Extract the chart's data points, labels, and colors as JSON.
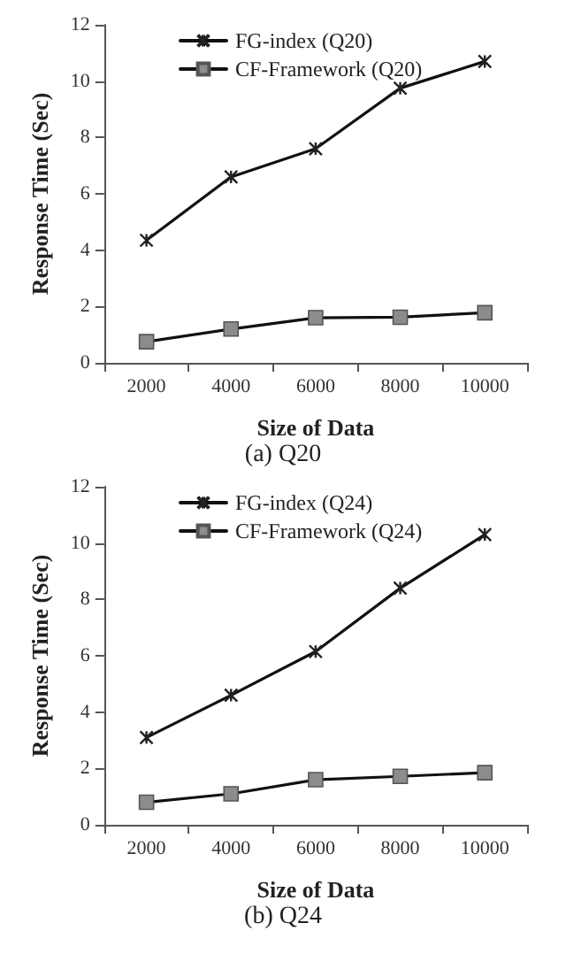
{
  "chart_data": [
    {
      "type": "line",
      "title": "(a) Q20",
      "xlabel": "Size of Data",
      "ylabel": "Response Time (Sec)",
      "categories": [
        "2000",
        "4000",
        "6000",
        "8000",
        "10000"
      ],
      "series": [
        {
          "name": "FG-index (Q20)",
          "color": "#222222",
          "marker": "cross",
          "values": [
            4.35,
            6.6,
            7.6,
            9.75,
            10.7
          ]
        },
        {
          "name": "CF-Framework (Q20)",
          "color": "#8c8c8c",
          "marker": "square",
          "values": [
            0.75,
            1.2,
            1.6,
            1.62,
            1.78
          ]
        }
      ],
      "ylim": [
        0,
        12
      ],
      "yticks": [
        0,
        2,
        4,
        6,
        8,
        10,
        12
      ],
      "grid": false,
      "legend": "top left"
    },
    {
      "type": "line",
      "title": "(b) Q24",
      "xlabel": "Size of Data",
      "ylabel": "Response Time (Sec)",
      "categories": [
        "2000",
        "4000",
        "6000",
        "8000",
        "10000"
      ],
      "series": [
        {
          "name": "FG-index (Q24)",
          "color": "#222222",
          "marker": "cross",
          "values": [
            3.1,
            4.6,
            6.15,
            8.4,
            10.3
          ]
        },
        {
          "name": "CF-Framework (Q24)",
          "color": "#8c8c8c",
          "marker": "square",
          "values": [
            0.8,
            1.1,
            1.6,
            1.72,
            1.85
          ]
        }
      ],
      "ylim": [
        0,
        12
      ],
      "yticks": [
        0,
        2,
        4,
        6,
        8,
        10,
        12
      ],
      "grid": false,
      "legend": "top left"
    }
  ]
}
